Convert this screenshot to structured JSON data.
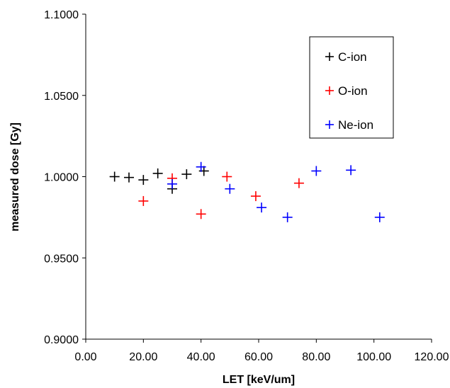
{
  "chart_data": {
    "type": "scatter",
    "title": "",
    "xlabel": "LET [keV/um]",
    "ylabel": "measured dose [Gy]",
    "xlim": [
      0,
      120
    ],
    "ylim": [
      0.9,
      1.1
    ],
    "xticks": [
      "0.00",
      "20.00",
      "40.00",
      "60.00",
      "80.00",
      "100.00",
      "120.00"
    ],
    "yticks": [
      "0.9000",
      "0.9500",
      "1.0000",
      "1.0500",
      "1.1000"
    ],
    "grid": false,
    "legend_position": "top-right",
    "marker": "plus",
    "series": [
      {
        "name": "C-ion",
        "color": "#000000",
        "points": [
          [
            10,
            1.0
          ],
          [
            15,
            0.9995
          ],
          [
            20,
            0.998
          ],
          [
            25,
            1.002
          ],
          [
            30,
            0.9925
          ],
          [
            35,
            1.0015
          ],
          [
            41,
            1.0035
          ]
        ]
      },
      {
        "name": "O-ion",
        "color": "#ff0000",
        "points": [
          [
            20,
            0.985
          ],
          [
            30,
            0.999
          ],
          [
            40,
            0.977
          ],
          [
            49,
            1.0
          ],
          [
            59,
            0.988
          ],
          [
            74,
            0.996
          ]
        ]
      },
      {
        "name": "Ne-ion",
        "color": "#0000ff",
        "points": [
          [
            30,
            0.9955
          ],
          [
            40,
            1.006
          ],
          [
            50,
            0.9925
          ],
          [
            61,
            0.981
          ],
          [
            70,
            0.975
          ],
          [
            80,
            1.0035
          ],
          [
            92,
            1.004
          ],
          [
            102,
            0.975
          ]
        ]
      }
    ]
  }
}
